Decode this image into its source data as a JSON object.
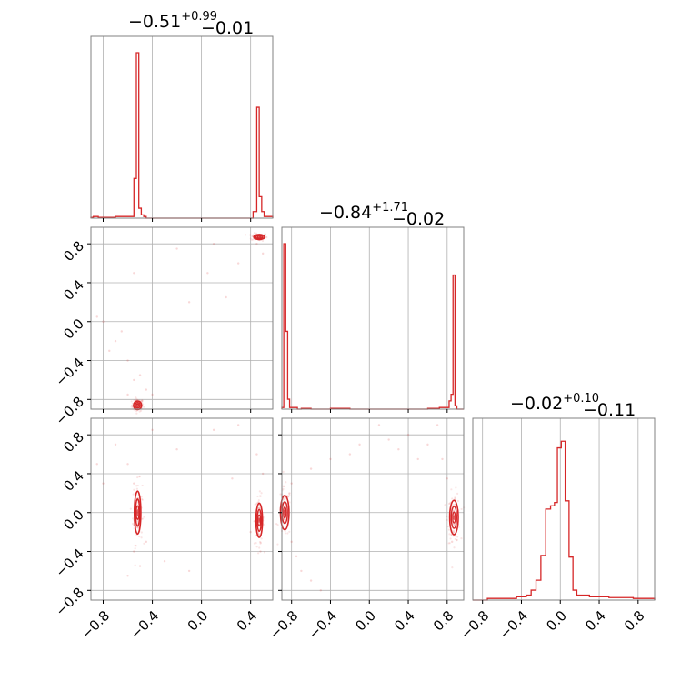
{
  "chart_data": {
    "type": "corner",
    "colors": {
      "main": "#d62728",
      "grid": "#b0b0b0",
      "frame": "#808080"
    },
    "grid": true,
    "titles": [
      {
        "value": "−0.51",
        "plus": "+0.99",
        "minus": "−0.01"
      },
      {
        "value": "−0.84",
        "plus": "+1.71",
        "minus": "−0.02"
      },
      {
        "value": "−0.02",
        "plus": "+0.10",
        "minus": "−0.11"
      }
    ],
    "ranges": [
      [
        -0.9,
        0.58
      ],
      [
        -0.9,
        0.97
      ],
      [
        -0.9,
        0.97
      ]
    ],
    "tick_values": [
      -0.8,
      -0.4,
      0.0,
      0.4,
      0.8
    ],
    "tick_labels": [
      "−0.8",
      "−0.4",
      "0.0",
      "0.4",
      "0.8"
    ],
    "histograms": [
      {
        "param": 0,
        "bins": [
          [
            -0.9,
            -0.88,
            0.005
          ],
          [
            -0.88,
            -0.84,
            0.01
          ],
          [
            -0.84,
            -0.7,
            0.005
          ],
          [
            -0.7,
            -0.55,
            0.01
          ],
          [
            -0.55,
            -0.53,
            0.24
          ],
          [
            -0.53,
            -0.51,
            1.0
          ],
          [
            -0.51,
            -0.49,
            0.06
          ],
          [
            -0.49,
            -0.47,
            0.02
          ],
          [
            -0.47,
            -0.45,
            0.01
          ],
          [
            -0.45,
            0.42,
            0.0
          ],
          [
            0.42,
            0.45,
            0.04
          ],
          [
            0.45,
            0.47,
            0.67
          ],
          [
            0.47,
            0.49,
            0.13
          ],
          [
            0.49,
            0.51,
            0.04
          ],
          [
            0.51,
            0.58,
            0.01
          ]
        ]
      },
      {
        "param": 1,
        "bins": [
          [
            -0.9,
            -0.88,
            0.01
          ],
          [
            -0.88,
            -0.86,
            1.0
          ],
          [
            -0.86,
            -0.84,
            0.47
          ],
          [
            -0.84,
            -0.82,
            0.06
          ],
          [
            -0.82,
            -0.74,
            0.01
          ],
          [
            -0.74,
            -0.7,
            0.0
          ],
          [
            -0.7,
            -0.6,
            0.005
          ],
          [
            -0.6,
            -0.4,
            0.0
          ],
          [
            -0.4,
            -0.2,
            0.005
          ],
          [
            -0.2,
            0.6,
            0.0
          ],
          [
            0.6,
            0.72,
            0.005
          ],
          [
            0.72,
            0.82,
            0.01
          ],
          [
            0.82,
            0.84,
            0.05
          ],
          [
            0.84,
            0.86,
            0.09
          ],
          [
            0.86,
            0.88,
            0.81
          ],
          [
            0.88,
            0.9,
            0.02
          ],
          [
            0.9,
            0.97,
            0.0
          ]
        ]
      },
      {
        "param": 2,
        "bins": [
          [
            -0.9,
            -0.75,
            0.0
          ],
          [
            -0.75,
            -0.6,
            0.01
          ],
          [
            -0.6,
            -0.45,
            0.01
          ],
          [
            -0.45,
            -0.35,
            0.02
          ],
          [
            -0.35,
            -0.3,
            0.03
          ],
          [
            -0.3,
            -0.25,
            0.06
          ],
          [
            -0.25,
            -0.2,
            0.12
          ],
          [
            -0.2,
            -0.15,
            0.27
          ],
          [
            -0.15,
            -0.1,
            0.55
          ],
          [
            -0.1,
            -0.06,
            0.57
          ],
          [
            -0.06,
            -0.03,
            0.59
          ],
          [
            -0.03,
            0.01,
            0.92
          ],
          [
            0.01,
            0.05,
            0.96
          ],
          [
            0.05,
            0.09,
            0.6
          ],
          [
            0.09,
            0.13,
            0.26
          ],
          [
            0.13,
            0.17,
            0.06
          ],
          [
            0.17,
            0.3,
            0.03
          ],
          [
            0.3,
            0.5,
            0.02
          ],
          [
            0.5,
            0.75,
            0.015
          ],
          [
            0.75,
            0.97,
            0.01
          ]
        ]
      }
    ],
    "scatter_panels": [
      {
        "x_param": 0,
        "y_param": 1,
        "clusters": [
          {
            "x": -0.52,
            "y": -0.86,
            "sx": 0.015,
            "sy": 0.02
          },
          {
            "x": 0.47,
            "y": 0.87,
            "sx": 0.02,
            "sy": 0.012
          }
        ],
        "sample_points": [
          [
            -0.55,
            -0.6
          ],
          [
            -0.6,
            -0.4
          ],
          [
            -0.7,
            -0.2
          ],
          [
            -0.8,
            0.0
          ],
          [
            -0.65,
            -0.1
          ],
          [
            -0.5,
            -0.55
          ],
          [
            -0.45,
            -0.7
          ],
          [
            -0.55,
            0.5
          ],
          [
            -0.2,
            0.75
          ],
          [
            0.1,
            0.8
          ],
          [
            0.3,
            0.6
          ],
          [
            0.2,
            0.25
          ],
          [
            -0.1,
            0.2
          ],
          [
            -0.4,
            -0.75
          ],
          [
            -0.75,
            -0.3
          ],
          [
            0.45,
            0.8
          ],
          [
            0.5,
            0.7
          ],
          [
            -0.6,
            -0.75
          ],
          [
            -0.85,
            0.05
          ],
          [
            0.05,
            0.5
          ]
        ]
      },
      {
        "x_param": 0,
        "y_param": 2,
        "clusters": [
          {
            "x": -0.52,
            "y": 0.0,
            "sx": 0.012,
            "sy": 0.1
          },
          {
            "x": 0.47,
            "y": -0.08,
            "sx": 0.012,
            "sy": 0.08
          }
        ],
        "sample_points": [
          [
            -0.55,
            -0.4
          ],
          [
            -0.5,
            -0.55
          ],
          [
            -0.6,
            -0.65
          ],
          [
            -0.45,
            -0.3
          ],
          [
            -0.55,
            0.3
          ],
          [
            -0.6,
            0.5
          ],
          [
            -0.7,
            0.7
          ],
          [
            -0.85,
            0.5
          ],
          [
            -0.4,
            0.85
          ],
          [
            -0.2,
            0.65
          ],
          [
            0.1,
            0.85
          ],
          [
            0.3,
            0.9
          ],
          [
            0.45,
            0.6
          ],
          [
            0.5,
            0.4
          ],
          [
            0.48,
            -0.4
          ],
          [
            0.4,
            -0.2
          ],
          [
            -0.3,
            -0.5
          ],
          [
            -0.1,
            -0.6
          ],
          [
            0.25,
            0.35
          ],
          [
            -0.8,
            0.3
          ]
        ]
      },
      {
        "x_param": 1,
        "y_param": 2,
        "clusters": [
          {
            "x": -0.87,
            "y": 0.0,
            "sx": 0.02,
            "sy": 0.08
          },
          {
            "x": 0.87,
            "y": -0.05,
            "sx": 0.02,
            "sy": 0.08
          }
        ],
        "sample_points": [
          [
            -0.8,
            -0.3
          ],
          [
            -0.75,
            -0.45
          ],
          [
            -0.7,
            -0.6
          ],
          [
            -0.6,
            -0.7
          ],
          [
            -0.8,
            0.3
          ],
          [
            -0.6,
            0.45
          ],
          [
            -0.4,
            0.55
          ],
          [
            -0.1,
            0.7
          ],
          [
            0.2,
            0.75
          ],
          [
            0.4,
            0.8
          ],
          [
            0.6,
            0.7
          ],
          [
            0.75,
            0.55
          ],
          [
            0.8,
            0.35
          ],
          [
            0.85,
            -0.3
          ],
          [
            0.7,
            0.9
          ],
          [
            0.1,
            0.9
          ],
          [
            -0.2,
            0.6
          ],
          [
            0.5,
            0.55
          ],
          [
            -0.5,
            -0.8
          ],
          [
            0.3,
            0.65
          ]
        ]
      }
    ]
  }
}
